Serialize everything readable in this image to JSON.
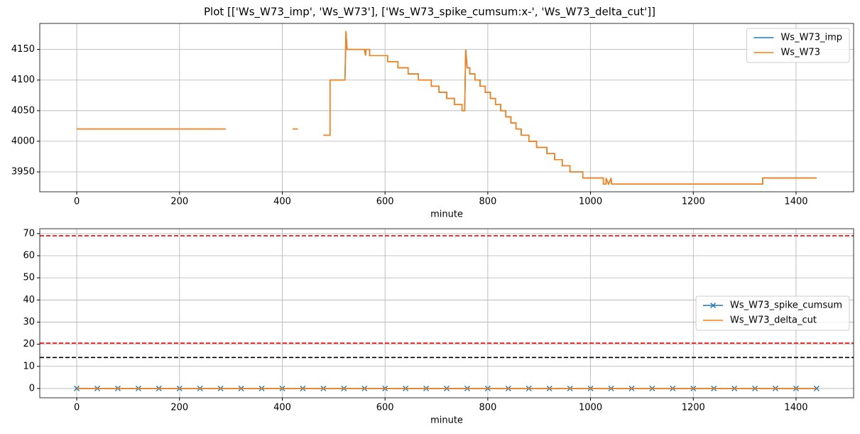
{
  "title": "Plot [['Ws_W73_imp', 'Ws_W73'], ['Ws_W73_spike_cumsum:x-', 'Ws_W73_delta_cut']]",
  "chart_data": [
    {
      "type": "line",
      "xlabel": "minute",
      "xlim": [
        -72,
        1512
      ],
      "ylim": [
        3917.5,
        4192.5
      ],
      "xticks": [
        0,
        200,
        400,
        600,
        800,
        1000,
        1200,
        1400
      ],
      "yticks": [
        3950,
        4000,
        4050,
        4100,
        4150
      ],
      "grid": true,
      "legend": "upper right",
      "series": [
        {
          "name": "Ws_W73_imp",
          "color": "#1f77b4",
          "x": [
            0,
            290,
            291,
            420,
            430,
            431,
            480,
            493,
            493,
            522,
            524,
            526,
            560,
            562,
            563,
            570,
            570,
            605,
            605,
            625,
            625,
            645,
            645,
            665,
            665,
            690,
            690,
            705,
            705,
            720,
            720,
            735,
            735,
            750,
            750,
            755,
            757,
            760,
            765,
            765,
            775,
            775,
            785,
            785,
            795,
            795,
            805,
            805,
            815,
            815,
            825,
            825,
            835,
            835,
            845,
            845,
            855,
            855,
            865,
            865,
            880,
            880,
            895,
            895,
            915,
            915,
            930,
            930,
            945,
            945,
            960,
            960,
            985,
            985,
            1025,
            1025,
            1030,
            1030,
            1035,
            1040,
            1041,
            1335,
            1335,
            1440
          ],
          "values": [
            4020,
            4020,
            null,
            4020,
            4020,
            null,
            4010,
            4010,
            4100,
            4100,
            4180,
            4150,
            4150,
            4140,
            4150,
            4150,
            4140,
            4140,
            4130,
            4130,
            4120,
            4120,
            4110,
            4110,
            4100,
            4100,
            4090,
            4090,
            4080,
            4080,
            4070,
            4070,
            4060,
            4060,
            4050,
            4050,
            4150,
            4120,
            4120,
            4110,
            4110,
            4100,
            4100,
            4090,
            4090,
            4080,
            4080,
            4070,
            4070,
            4060,
            4060,
            4050,
            4050,
            4040,
            4040,
            4030,
            4030,
            4020,
            4020,
            4010,
            4010,
            4000,
            4000,
            3990,
            3990,
            3980,
            3980,
            3970,
            3970,
            3960,
            3960,
            3950,
            3950,
            3940,
            3940,
            3930,
            3930,
            3940,
            3930,
            3940,
            3930,
            3930,
            3940,
            3940
          ]
        },
        {
          "name": "Ws_W73",
          "color": "#ff7f0e",
          "x": [
            0,
            290,
            291,
            420,
            430,
            431,
            480,
            493,
            493,
            522,
            524,
            526,
            560,
            562,
            563,
            570,
            570,
            605,
            605,
            625,
            625,
            645,
            645,
            665,
            665,
            690,
            690,
            705,
            705,
            720,
            720,
            735,
            735,
            750,
            750,
            755,
            757,
            760,
            765,
            765,
            775,
            775,
            785,
            785,
            795,
            795,
            805,
            805,
            815,
            815,
            825,
            825,
            835,
            835,
            845,
            845,
            855,
            855,
            865,
            865,
            880,
            880,
            895,
            895,
            915,
            915,
            930,
            930,
            945,
            945,
            960,
            960,
            985,
            985,
            1025,
            1025,
            1030,
            1030,
            1035,
            1040,
            1041,
            1335,
            1335,
            1440
          ],
          "values": [
            4020,
            4020,
            null,
            4020,
            4020,
            null,
            4010,
            4010,
            4100,
            4100,
            4180,
            4150,
            4150,
            4140,
            4150,
            4150,
            4140,
            4140,
            4130,
            4130,
            4120,
            4120,
            4110,
            4110,
            4100,
            4100,
            4090,
            4090,
            4080,
            4080,
            4070,
            4070,
            4060,
            4060,
            4050,
            4050,
            4150,
            4120,
            4120,
            4110,
            4110,
            4100,
            4100,
            4090,
            4090,
            4080,
            4080,
            4070,
            4070,
            4060,
            4060,
            4050,
            4050,
            4040,
            4040,
            4030,
            4030,
            4020,
            4020,
            4010,
            4010,
            4000,
            4000,
            3990,
            3990,
            3980,
            3980,
            3970,
            3970,
            3960,
            3960,
            3950,
            3950,
            3940,
            3940,
            3930,
            3930,
            3940,
            3930,
            3940,
            3930,
            3930,
            3940,
            3940
          ]
        }
      ]
    },
    {
      "type": "line",
      "xlabel": "minute",
      "xlim": [
        -72,
        1512
      ],
      "ylim": [
        -4.2,
        72.2
      ],
      "xticks": [
        0,
        200,
        400,
        600,
        800,
        1000,
        1200,
        1400
      ],
      "yticks": [
        0,
        10,
        20,
        30,
        40,
        50,
        60,
        70
      ],
      "grid": true,
      "legend": "center right",
      "hlines": [
        {
          "value": 69,
          "color": "#ff0000"
        },
        {
          "value": 20.5,
          "color": "#ff0000"
        },
        {
          "value": 14,
          "color": "#000000"
        }
      ],
      "series": [
        {
          "name": "Ws_W73_spike_cumsum",
          "color": "#1f77b4",
          "marker": "x",
          "x": [
            0,
            40,
            80,
            120,
            160,
            200,
            240,
            280,
            320,
            360,
            400,
            440,
            480,
            520,
            560,
            600,
            640,
            680,
            720,
            760,
            800,
            840,
            880,
            920,
            960,
            1000,
            1040,
            1080,
            1120,
            1160,
            1200,
            1240,
            1280,
            1320,
            1360,
            1400,
            1440
          ],
          "values": [
            0,
            0,
            0,
            0,
            0,
            0,
            0,
            0,
            0,
            0,
            0,
            0,
            0,
            0,
            0,
            0,
            0,
            0,
            0,
            0,
            0,
            0,
            0,
            0,
            0,
            0,
            0,
            0,
            0,
            0,
            0,
            0,
            0,
            0,
            0,
            0,
            0
          ]
        },
        {
          "name": "Ws_W73_delta_cut",
          "color": "#ff7f0e",
          "x": [
            0,
            1440
          ],
          "values": [
            0,
            0
          ]
        }
      ]
    }
  ]
}
